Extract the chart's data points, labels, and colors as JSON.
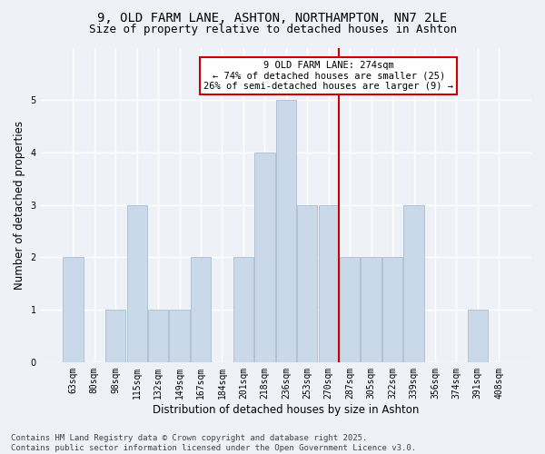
{
  "title1": "9, OLD FARM LANE, ASHTON, NORTHAMPTON, NN7 2LE",
  "title2": "Size of property relative to detached houses in Ashton",
  "xlabel": "Distribution of detached houses by size in Ashton",
  "ylabel": "Number of detached properties",
  "footer": "Contains HM Land Registry data © Crown copyright and database right 2025.\nContains public sector information licensed under the Open Government Licence v3.0.",
  "categories": [
    "63sqm",
    "80sqm",
    "98sqm",
    "115sqm",
    "132sqm",
    "149sqm",
    "167sqm",
    "184sqm",
    "201sqm",
    "218sqm",
    "236sqm",
    "253sqm",
    "270sqm",
    "287sqm",
    "305sqm",
    "322sqm",
    "339sqm",
    "356sqm",
    "374sqm",
    "391sqm",
    "408sqm"
  ],
  "values": [
    2,
    0,
    1,
    3,
    1,
    1,
    2,
    0,
    2,
    4,
    5,
    3,
    3,
    2,
    2,
    2,
    3,
    0,
    0,
    1,
    0
  ],
  "bar_color": "#c9d9ea",
  "bar_edge_color": "#aabdd0",
  "red_line_index": 12.5,
  "annotation_text": "9 OLD FARM LANE: 274sqm\n← 74% of detached houses are smaller (25)\n26% of semi-detached houses are larger (9) →",
  "annotation_box_color": "#ffffff",
  "annotation_border_color": "#cc0000",
  "red_line_color": "#cc0000",
  "ylim": [
    0,
    6
  ],
  "yticks": [
    0,
    1,
    2,
    3,
    4,
    5,
    6
  ],
  "background_color": "#eef2f7",
  "grid_color": "#ffffff",
  "title_fontsize": 10,
  "subtitle_fontsize": 9,
  "axis_label_fontsize": 8.5,
  "tick_fontsize": 7,
  "annotation_fontsize": 7.5,
  "footer_fontsize": 6.5
}
